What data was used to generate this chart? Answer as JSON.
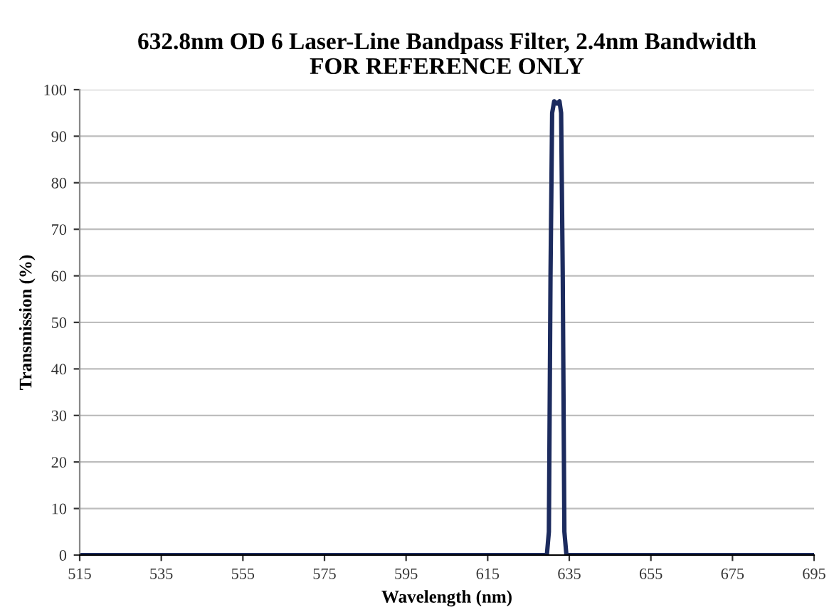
{
  "chart_data": {
    "type": "line",
    "title": "632.8nm OD 6 Laser-Line Bandpass Filter, 2.4nm Bandwidth\nFOR REFERENCE ONLY",
    "xlabel": "Wavelength (nm)",
    "ylabel": "Transmission (%)",
    "series": [
      {
        "color": "#1c2b5e",
        "x": [
          515,
          629.5,
          630.0,
          630.4,
          630.8,
          631.3,
          632.0,
          632.6,
          633.0,
          633.4,
          633.8,
          634.3,
          695
        ],
        "values": [
          0,
          0,
          5,
          60,
          95,
          97.5,
          97,
          97.5,
          95,
          60,
          5,
          0,
          0
        ]
      }
    ],
    "xlim": [
      515,
      695
    ],
    "xticks": [
      515,
      535,
      555,
      575,
      595,
      615,
      635,
      655,
      675,
      695
    ],
    "ylim": [
      0,
      100
    ],
    "yticks": [
      0,
      10,
      20,
      30,
      40,
      50,
      60,
      70,
      80,
      90,
      100
    ],
    "grid": "y",
    "legend": false,
    "marker": "none",
    "line_style": "solid"
  }
}
